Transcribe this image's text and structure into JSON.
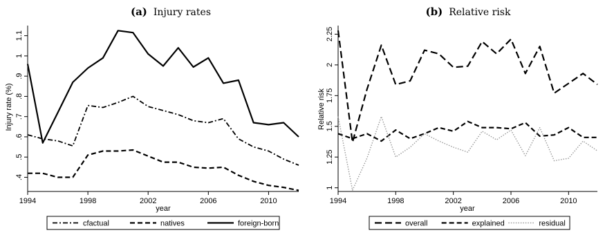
{
  "chart_data": [
    {
      "type": "line",
      "title_letter": "(a)",
      "title": "Injury rates",
      "xlabel": "year",
      "ylabel": "Injury rate (%)",
      "xlim": [
        1994,
        2012
      ],
      "ylim": [
        0.33,
        1.15
      ],
      "xticks": [
        1994,
        1998,
        2002,
        2006,
        2010
      ],
      "xtick_labels": [
        "1994",
        "1998",
        "2002",
        "2006",
        "2010"
      ],
      "yticks": [
        0.4,
        0.5,
        0.6,
        0.7,
        0.8,
        0.9,
        1.0,
        1.1
      ],
      "ytick_labels": [
        ".4",
        ".5",
        ".6",
        ".7",
        ".8",
        ".9",
        "1",
        "1.1"
      ],
      "grid": false,
      "legend_position": "bottom",
      "x": [
        1994,
        1995,
        1996,
        1997,
        1998,
        1999,
        2000,
        2001,
        2002,
        2003,
        2004,
        2005,
        2006,
        2007,
        2008,
        2009,
        2010,
        2011,
        2012
      ],
      "series": [
        {
          "name": "cfactual",
          "dash": "dashdot",
          "values": [
            0.61,
            0.59,
            0.58,
            0.555,
            0.755,
            0.745,
            0.77,
            0.8,
            0.75,
            0.73,
            0.71,
            0.68,
            0.67,
            0.69,
            0.59,
            0.55,
            0.53,
            0.49,
            0.46
          ]
        },
        {
          "name": "natives",
          "dash": "dash",
          "values": [
            0.42,
            0.42,
            0.4,
            0.4,
            0.51,
            0.53,
            0.53,
            0.535,
            0.505,
            0.475,
            0.475,
            0.45,
            0.445,
            0.45,
            0.41,
            0.38,
            0.36,
            0.35,
            0.335
          ]
        },
        {
          "name": "foreign-born",
          "dash": "solid",
          "values": [
            0.96,
            0.57,
            0.72,
            0.87,
            0.94,
            0.99,
            1.125,
            1.115,
            1.01,
            0.95,
            1.04,
            0.945,
            0.99,
            0.865,
            0.88,
            0.67,
            0.66,
            0.67,
            0.6
          ]
        }
      ]
    },
    {
      "type": "line",
      "title_letter": "(b)",
      "title": "Relative risk",
      "xlabel": "year",
      "ylabel": "Relative risk",
      "xlim": [
        1994,
        2012
      ],
      "ylim": [
        0.97,
        2.32
      ],
      "xticks": [
        1994,
        1998,
        2002,
        2006,
        2010
      ],
      "xtick_labels": [
        "1994",
        "1998",
        "2002",
        "2006",
        "2010"
      ],
      "yticks": [
        1.0,
        1.25,
        1.5,
        1.75,
        2.0,
        2.25
      ],
      "ytick_labels": [
        "1",
        "1.25",
        "1.5",
        "1.75",
        "2",
        "2.25"
      ],
      "grid": false,
      "legend_position": "bottom",
      "x": [
        1994,
        1995,
        1996,
        1997,
        1998,
        1999,
        2000,
        2001,
        2002,
        2003,
        2004,
        2005,
        2006,
        2007,
        2008,
        2009,
        2010,
        2011,
        2012
      ],
      "series": [
        {
          "name": "overall",
          "dash": "longdash",
          "values": [
            2.28,
            1.37,
            1.8,
            2.16,
            1.84,
            1.87,
            2.12,
            2.09,
            1.98,
            1.99,
            2.19,
            2.09,
            2.21,
            1.93,
            2.15,
            1.77,
            1.85,
            1.93,
            1.84
          ]
        },
        {
          "name": "explained",
          "dash": "dash",
          "values": [
            1.44,
            1.4,
            1.44,
            1.38,
            1.47,
            1.4,
            1.44,
            1.49,
            1.46,
            1.54,
            1.49,
            1.49,
            1.48,
            1.53,
            1.42,
            1.43,
            1.49,
            1.41,
            1.41
          ]
        },
        {
          "name": "residual",
          "dash": "dot",
          "values": [
            1.58,
            0.98,
            1.24,
            1.58,
            1.25,
            1.33,
            1.44,
            1.38,
            1.33,
            1.29,
            1.46,
            1.39,
            1.47,
            1.26,
            1.49,
            1.22,
            1.24,
            1.38,
            1.3
          ]
        }
      ]
    }
  ]
}
